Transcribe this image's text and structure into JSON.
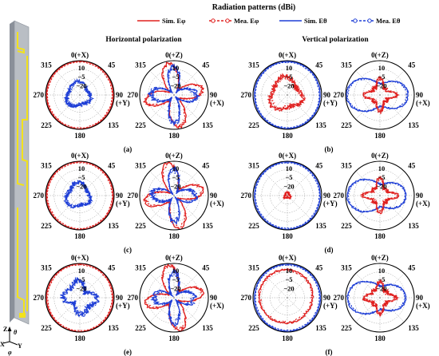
{
  "header": {
    "title": "Radiation patterns (dBi)",
    "legend": [
      {
        "label": "Sim. Eφ",
        "color": "#e0201f",
        "dash": "solid",
        "marker": "none"
      },
      {
        "label": "Mea. Eφ",
        "color": "#e0201f",
        "dash": "dashed",
        "marker": "circle"
      },
      {
        "label": "Sim. Eθ",
        "color": "#1f3fd6",
        "dash": "solid",
        "marker": "none"
      },
      {
        "label": "Mea. Eθ",
        "color": "#1f3fd6",
        "dash": "dashed",
        "marker": "circle"
      }
    ],
    "horizontal_label": "Horizontal polarization",
    "vertical_label": "Vertical polarization"
  },
  "antenna": {
    "axis_labels": {
      "z": "Z",
      "theta": "θ",
      "x": "X",
      "y": "Y",
      "phi": "φ"
    },
    "colors": {
      "substrate": "#b9bec4",
      "edge": "#8a9099",
      "metal": "#f2e21c"
    }
  },
  "colors": {
    "red": "#e0201f",
    "blue": "#1f3fd6",
    "grid": "#9a9a9a"
  },
  "chart_data": [
    {
      "type": "polar",
      "caption": "(a)",
      "plane": "XY",
      "polarization": "horizontal",
      "angle_labels": {
        "top": "0(+X)",
        "tl": "315",
        "tr": "45",
        "left": "270",
        "right": "90",
        "right_sub": "(+Y)",
        "bl": "225",
        "br": "135",
        "bottom": "180"
      },
      "ring_labels": [
        "10",
        "−5",
        "−20"
      ],
      "series": [
        {
          "color": "red",
          "shape": {
            "base": 0.98,
            "amps": [
              [
                2,
                0.01,
                0
              ]
            ]
          },
          "jitter": 0.015
        },
        {
          "color": "blue",
          "shape": {
            "base": 0.34,
            "amps": [
              [
                1,
                0.05,
                1.4
              ],
              [
                3,
                0.05,
                0.4
              ]
            ]
          },
          "jitter": 0.1
        }
      ]
    },
    {
      "type": "polar",
      "caption": "",
      "plane": "XZ",
      "polarization": "horizontal",
      "angle_labels": {
        "top": "0(+Z)",
        "tl": "315",
        "tr": "45",
        "left": "270",
        "right": "90",
        "right_sub": "(+X)",
        "bl": "225",
        "br": "135",
        "bottom": "180"
      },
      "ring_labels": [
        "10",
        "−5",
        "−20"
      ],
      "series": [
        {
          "color": "red",
          "shape": {
            "base": 0.55,
            "amps": [
              [
                4,
                0.35,
                0.78
              ],
              [
                2,
                0.05,
                0
              ]
            ]
          },
          "jitter": 0.1
        },
        {
          "color": "blue",
          "shape": {
            "base": 0.45,
            "amps": [
              [
                4,
                0.3,
                0
              ],
              [
                6,
                0.08,
                0.3
              ]
            ]
          },
          "jitter": 0.15
        }
      ]
    },
    {
      "type": "polar",
      "caption": "(b)",
      "plane": "XY",
      "polarization": "vertical",
      "angle_labels": {
        "top": "0(+X)",
        "tl": "315",
        "tr": "45",
        "left": "270",
        "right": "90",
        "right_sub": "(+Y)",
        "bl": "225",
        "br": "135",
        "bottom": "180"
      },
      "ring_labels": [
        "10",
        "−5",
        "−20"
      ],
      "series": [
        {
          "color": "blue",
          "shape": {
            "base": 0.97,
            "amps": [
              [
                2,
                0.01,
                0
              ]
            ]
          },
          "jitter": 0.015
        },
        {
          "color": "red",
          "shape": {
            "base": 0.45,
            "amps": [
              [
                1,
                0.06,
                1.2
              ],
              [
                3,
                0.08,
                0.5
              ]
            ]
          },
          "jitter": 0.12
        }
      ]
    },
    {
      "type": "polar",
      "caption": "",
      "plane": "XZ",
      "polarization": "vertical",
      "angle_labels": {
        "top": "0(+Z)",
        "tl": "315",
        "tr": "45",
        "left": "270",
        "right": "90",
        "right_sub": "(+X)",
        "bl": "225",
        "br": "135",
        "bottom": "180"
      },
      "ring_labels": [
        "10",
        "−5",
        "−20"
      ],
      "series": [
        {
          "color": "blue",
          "shape": {
            "base": 0.62,
            "amps": [
              [
                2,
                -0.28,
                0
              ],
              [
                1,
                0.08,
                1.57
              ]
            ]
          },
          "jitter": 0.04
        },
        {
          "color": "red",
          "shape": {
            "base": 0.33,
            "amps": [
              [
                4,
                0.12,
                0
              ],
              [
                8,
                0.06,
                0
              ]
            ]
          },
          "jitter": 0.1
        }
      ]
    },
    {
      "type": "polar",
      "caption": "(c)",
      "plane": "XY",
      "polarization": "horizontal",
      "angle_labels": {
        "top": "0(+X)",
        "tl": "315",
        "tr": "45",
        "left": "270",
        "right": "90",
        "right_sub": "(+Y)",
        "bl": "225",
        "br": "135",
        "bottom": "180"
      },
      "ring_labels": [
        "10",
        "−5",
        "−20"
      ],
      "series": [
        {
          "color": "red",
          "shape": {
            "base": 0.98,
            "amps": [
              [
                2,
                0.01,
                0
              ]
            ]
          },
          "jitter": 0.015
        },
        {
          "color": "blue",
          "shape": {
            "base": 0.34,
            "amps": [
              [
                1,
                0.05,
                1.5
              ],
              [
                3,
                0.05,
                0.2
              ]
            ]
          },
          "jitter": 0.1
        }
      ]
    },
    {
      "type": "polar",
      "caption": "",
      "plane": "XZ",
      "polarization": "horizontal",
      "angle_labels": {
        "top": "0(+Z)",
        "tl": "315",
        "tr": "45",
        "left": "270",
        "right": "90",
        "right_sub": "(+X)",
        "bl": "225",
        "br": "135",
        "bottom": "180"
      },
      "ring_labels": [
        "10",
        "−5",
        "−20"
      ],
      "series": [
        {
          "color": "red",
          "shape": {
            "base": 0.55,
            "amps": [
              [
                4,
                0.36,
                0.78
              ],
              [
                2,
                0.05,
                0
              ]
            ]
          },
          "jitter": 0.1
        },
        {
          "color": "blue",
          "shape": {
            "base": 0.42,
            "amps": [
              [
                4,
                0.28,
                0
              ],
              [
                6,
                0.08,
                0.4
              ]
            ]
          },
          "jitter": 0.15
        }
      ]
    },
    {
      "type": "polar",
      "caption": "(d)",
      "plane": "XY",
      "polarization": "vertical",
      "angle_labels": {
        "top": "0(+X)",
        "tl": "315",
        "tr": "45",
        "left": "270",
        "right": "90",
        "right_sub": "(+Y)",
        "bl": "225",
        "br": "135",
        "bottom": "180"
      },
      "ring_labels": [
        "10",
        "−5",
        "−20"
      ],
      "series": [
        {
          "color": "blue",
          "shape": {
            "base": 0.97,
            "amps": [
              [
                2,
                0.01,
                0
              ]
            ]
          },
          "jitter": 0.015
        },
        {
          "color": "red",
          "shape": {
            "base": 0.08,
            "amps": [
              [
                3,
                0.02,
                0
              ]
            ]
          },
          "jitter": 0.04
        }
      ]
    },
    {
      "type": "polar",
      "caption": "",
      "plane": "XZ",
      "polarization": "vertical",
      "angle_labels": {
        "top": "0(+Z)",
        "tl": "315",
        "tr": "45",
        "left": "270",
        "right": "90",
        "right_sub": "(+X)",
        "bl": "225",
        "br": "135",
        "bottom": "180"
      },
      "ring_labels": [
        "10",
        "−5",
        "−20"
      ],
      "series": [
        {
          "color": "blue",
          "shape": {
            "base": 0.6,
            "amps": [
              [
                2,
                -0.26,
                0
              ],
              [
                1,
                0.1,
                1.57
              ]
            ]
          },
          "jitter": 0.04
        },
        {
          "color": "red",
          "shape": {
            "base": 0.33,
            "amps": [
              [
                4,
                0.12,
                0
              ],
              [
                8,
                0.06,
                0
              ]
            ]
          },
          "jitter": 0.1
        }
      ]
    },
    {
      "type": "polar",
      "caption": "(e)",
      "plane": "XY",
      "polarization": "horizontal",
      "angle_labels": {
        "top": "0(+X)",
        "tl": "315",
        "tr": "45",
        "left": "270",
        "right": "90",
        "right_sub": "(+Y)",
        "bl": "225",
        "br": "135",
        "bottom": "180"
      },
      "ring_labels": [
        "10",
        "−5",
        "−20"
      ],
      "series": [
        {
          "color": "red",
          "shape": {
            "base": 0.98,
            "amps": [
              [
                2,
                0.01,
                0
              ]
            ]
          },
          "jitter": 0.015
        },
        {
          "color": "blue",
          "shape": {
            "base": 0.4,
            "amps": [
              [
                4,
                0.1,
                0
              ],
              [
                2,
                0.08,
                1.57
              ]
            ]
          },
          "jitter": 0.15
        }
      ]
    },
    {
      "type": "polar",
      "caption": "",
      "plane": "XZ",
      "polarization": "horizontal",
      "angle_labels": {
        "top": "0(+Z)",
        "tl": "315",
        "tr": "45",
        "left": "270",
        "right": "90",
        "right_sub": "(+X)",
        "bl": "225",
        "br": "135",
        "bottom": "180"
      },
      "ring_labels": [
        "10",
        "−5",
        "−20"
      ],
      "series": [
        {
          "color": "red",
          "shape": {
            "base": 0.55,
            "amps": [
              [
                4,
                0.35,
                0.78
              ],
              [
                2,
                0.06,
                0
              ]
            ]
          },
          "jitter": 0.1
        },
        {
          "color": "blue",
          "shape": {
            "base": 0.42,
            "amps": [
              [
                4,
                0.26,
                0
              ],
              [
                6,
                0.08,
                0.2
              ]
            ]
          },
          "jitter": 0.15
        }
      ]
    },
    {
      "type": "polar",
      "caption": "(f)",
      "plane": "XY",
      "polarization": "vertical",
      "angle_labels": {
        "top": "0(+X)",
        "tl": "315",
        "tr": "45",
        "left": "270",
        "right": "90",
        "right_sub": "(+Y)",
        "bl": "225",
        "br": "135",
        "bottom": "180"
      },
      "ring_labels": [
        "10",
        "−5",
        "−20"
      ],
      "series": [
        {
          "color": "blue",
          "shape": {
            "base": 0.97,
            "amps": [
              [
                2,
                0.01,
                0
              ]
            ]
          },
          "jitter": 0.015
        },
        {
          "color": "red",
          "shape": {
            "base": 0.78,
            "amps": [
              [
                1,
                0.06,
                0.8
              ]
            ]
          },
          "jitter": 0.05
        }
      ]
    },
    {
      "type": "polar",
      "caption": "",
      "plane": "XZ",
      "polarization": "vertical",
      "angle_labels": {
        "top": "0(+Z)",
        "tl": "315",
        "tr": "45",
        "left": "270",
        "right": "90",
        "right_sub": "(+X)",
        "bl": "225",
        "br": "135",
        "bottom": "180"
      },
      "ring_labels": [
        "10",
        "−5",
        "−20"
      ],
      "series": [
        {
          "color": "blue",
          "shape": {
            "base": 0.6,
            "amps": [
              [
                2,
                -0.25,
                0
              ],
              [
                1,
                0.1,
                1.57
              ]
            ]
          },
          "jitter": 0.04
        },
        {
          "color": "red",
          "shape": {
            "base": 0.33,
            "amps": [
              [
                4,
                0.1,
                0
              ],
              [
                8,
                0.05,
                0
              ]
            ]
          },
          "jitter": 0.1
        }
      ]
    }
  ]
}
